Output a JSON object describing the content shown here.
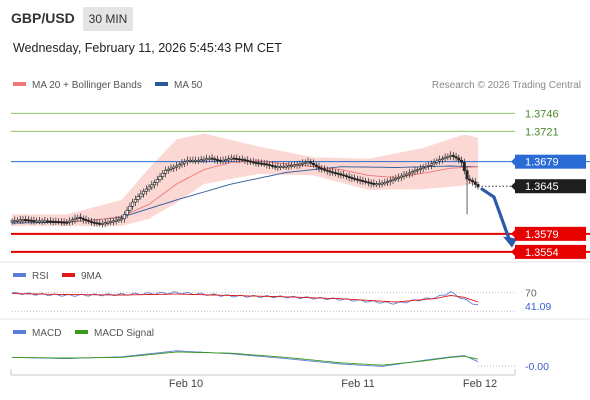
{
  "header": {
    "symbol": "GBP/USD",
    "timeframe": "30 MIN",
    "datetime": "Wednesday, February 11, 2026 5:45:43 PM CET"
  },
  "legend": {
    "main": [
      {
        "label": "MA 20 + Bollinger Bands",
        "color": "#f07878"
      },
      {
        "label": "MA 50",
        "color": "#2b5a9c"
      }
    ],
    "credit": "Research © 2026 Trading Central",
    "rsi": [
      {
        "label": "RSI",
        "color": "#5b7fd6"
      },
      {
        "label": "9MA",
        "color": "#e01818"
      }
    ],
    "macd": [
      {
        "label": "MACD",
        "color": "#5b7fd6"
      },
      {
        "label": "MACD Signal",
        "color": "#3a9a1e"
      }
    ]
  },
  "chart_data": [
    {
      "type": "candlestick",
      "price_range": [
        1.354,
        1.377
      ],
      "current_price": 1.3645,
      "levels": [
        {
          "label": "1.3746",
          "value": 1.3746,
          "kind": "resistance",
          "color": "#8cc76a"
        },
        {
          "label": "1.3721",
          "value": 1.3721,
          "kind": "resistance",
          "color": "#8cc76a"
        },
        {
          "label": "1.3679",
          "value": 1.3679,
          "kind": "pivot",
          "color": "#2a6bd6"
        },
        {
          "label": "1.3645",
          "value": 1.3645,
          "kind": "last",
          "color": "#1a1a1a"
        },
        {
          "label": "1.3579",
          "value": 1.3579,
          "kind": "support",
          "color": "#e60000"
        },
        {
          "label": "1.3554",
          "value": 1.3554,
          "kind": "support",
          "color": "#e60000"
        }
      ],
      "forecast_arrow": {
        "from": 1.3641,
        "to": 1.356,
        "direction": "down",
        "color": "#2a5aa8"
      },
      "x_ticks": [
        "Feb 10",
        "Feb 11",
        "Feb 12"
      ],
      "close_points": [
        [
          0,
          1.3597
        ],
        [
          4,
          1.3599
        ],
        [
          8,
          1.3597
        ],
        [
          12,
          1.3597
        ],
        [
          16,
          1.3596
        ],
        [
          20,
          1.3595
        ],
        [
          24,
          1.3602
        ],
        [
          28,
          1.3596
        ],
        [
          32,
          1.3593
        ],
        [
          36,
          1.3596
        ],
        [
          40,
          1.36
        ],
        [
          44,
          1.3623
        ],
        [
          48,
          1.3638
        ],
        [
          52,
          1.365
        ],
        [
          56,
          1.3667
        ],
        [
          60,
          1.3673
        ],
        [
          64,
          1.3681
        ],
        [
          68,
          1.3681
        ],
        [
          72,
          1.3684
        ],
        [
          76,
          1.368
        ],
        [
          80,
          1.3684
        ],
        [
          84,
          1.3682
        ],
        [
          88,
          1.3678
        ],
        [
          92,
          1.3676
        ],
        [
          96,
          1.3672
        ],
        [
          100,
          1.3673
        ],
        [
          104,
          1.3675
        ],
        [
          108,
          1.3679
        ],
        [
          112,
          1.367
        ],
        [
          116,
          1.3665
        ],
        [
          120,
          1.3661
        ],
        [
          124,
          1.3656
        ],
        [
          128,
          1.3652
        ],
        [
          132,
          1.3648
        ],
        [
          136,
          1.365
        ],
        [
          140,
          1.3656
        ],
        [
          144,
          1.3662
        ],
        [
          148,
          1.3668
        ],
        [
          152,
          1.3674
        ],
        [
          156,
          1.3682
        ],
        [
          160,
          1.3688
        ],
        [
          162,
          1.3684
        ],
        [
          164,
          1.3678
        ],
        [
          166,
          1.3655
        ],
        [
          168,
          1.3651
        ],
        [
          170,
          1.3644
        ]
      ],
      "ma20_points": [
        [
          0,
          1.3596
        ],
        [
          10,
          1.3597
        ],
        [
          20,
          1.3596
        ],
        [
          30,
          1.3598
        ],
        [
          40,
          1.3603
        ],
        [
          50,
          1.362
        ],
        [
          60,
          1.3648
        ],
        [
          70,
          1.3668
        ],
        [
          80,
          1.3678
        ],
        [
          90,
          1.368
        ],
        [
          100,
          1.3676
        ],
        [
          110,
          1.3672
        ],
        [
          120,
          1.3668
        ],
        [
          130,
          1.366
        ],
        [
          140,
          1.3657
        ],
        [
          150,
          1.3663
        ],
        [
          160,
          1.367
        ],
        [
          170,
          1.3672
        ]
      ],
      "ma50_points": [
        [
          0,
          1.3594
        ],
        [
          20,
          1.3595
        ],
        [
          40,
          1.3602
        ],
        [
          60,
          1.3626
        ],
        [
          80,
          1.3648
        ],
        [
          100,
          1.3664
        ],
        [
          120,
          1.3672
        ],
        [
          140,
          1.3671
        ],
        [
          160,
          1.3673
        ],
        [
          170,
          1.3672
        ]
      ],
      "bb_upper": [
        [
          0,
          1.3606
        ],
        [
          20,
          1.3606
        ],
        [
          40,
          1.3626
        ],
        [
          50,
          1.367
        ],
        [
          60,
          1.371
        ],
        [
          70,
          1.3718
        ],
        [
          90,
          1.37
        ],
        [
          110,
          1.3685
        ],
        [
          130,
          1.3683
        ],
        [
          150,
          1.3698
        ],
        [
          165,
          1.3717
        ],
        [
          170,
          1.3712
        ]
      ],
      "bb_lower": [
        [
          0,
          1.359
        ],
        [
          20,
          1.359
        ],
        [
          40,
          1.359
        ],
        [
          50,
          1.36
        ],
        [
          60,
          1.3622
        ],
        [
          70,
          1.3648
        ],
        [
          90,
          1.3662
        ],
        [
          110,
          1.366
        ],
        [
          130,
          1.364
        ],
        [
          150,
          1.3641
        ],
        [
          165,
          1.3646
        ],
        [
          170,
          1.365
        ]
      ]
    },
    {
      "type": "line",
      "name": "RSI",
      "ylim": [
        20,
        80
      ],
      "reference_levels": [
        70,
        30
      ],
      "last_value": 41.09,
      "series": [
        {
          "name": "RSI",
          "color": "#5b7fd6",
          "values": [
            [
              0,
              69
            ],
            [
              20,
              64
            ],
            [
              40,
              66
            ],
            [
              60,
              70
            ],
            [
              80,
              63
            ],
            [
              100,
              61
            ],
            [
              120,
              56
            ],
            [
              140,
              47
            ],
            [
              155,
              60
            ],
            [
              160,
              71
            ],
            [
              165,
              55
            ],
            [
              170,
              43
            ]
          ]
        },
        {
          "name": "9MA",
          "color": "#e01818",
          "values": [
            [
              0,
              68
            ],
            [
              20,
              66
            ],
            [
              40,
              65
            ],
            [
              60,
              67
            ],
            [
              80,
              64
            ],
            [
              100,
              61
            ],
            [
              120,
              57
            ],
            [
              140,
              50
            ],
            [
              155,
              58
            ],
            [
              160,
              64
            ],
            [
              165,
              60
            ],
            [
              170,
              50
            ]
          ]
        }
      ],
      "tick_labels": [
        "70",
        "41.09"
      ]
    },
    {
      "type": "line",
      "name": "MACD",
      "last_value": -0.0,
      "series": [
        {
          "name": "MACD",
          "color": "#5b7fd6",
          "values": [
            [
              0,
              0.1
            ],
            [
              20,
              -0.1
            ],
            [
              40,
              0.2
            ],
            [
              60,
              1.2
            ],
            [
              80,
              0.7
            ],
            [
              100,
              -0.1
            ],
            [
              120,
              -1.0
            ],
            [
              135,
              -1.4
            ],
            [
              150,
              -0.4
            ],
            [
              160,
              0.2
            ],
            [
              165,
              0.4
            ],
            [
              170,
              -0.6
            ]
          ]
        },
        {
          "name": "MACD Signal",
          "color": "#3a9a1e",
          "values": [
            [
              0,
              0.1
            ],
            [
              20,
              0.0
            ],
            [
              40,
              0.1
            ],
            [
              60,
              1.0
            ],
            [
              80,
              0.8
            ],
            [
              100,
              0.1
            ],
            [
              120,
              -0.8
            ],
            [
              135,
              -1.2
            ],
            [
              150,
              -0.5
            ],
            [
              160,
              0.1
            ],
            [
              165,
              0.3
            ],
            [
              170,
              -0.2
            ]
          ]
        }
      ],
      "tick_labels": [
        "-0.00"
      ]
    }
  ]
}
